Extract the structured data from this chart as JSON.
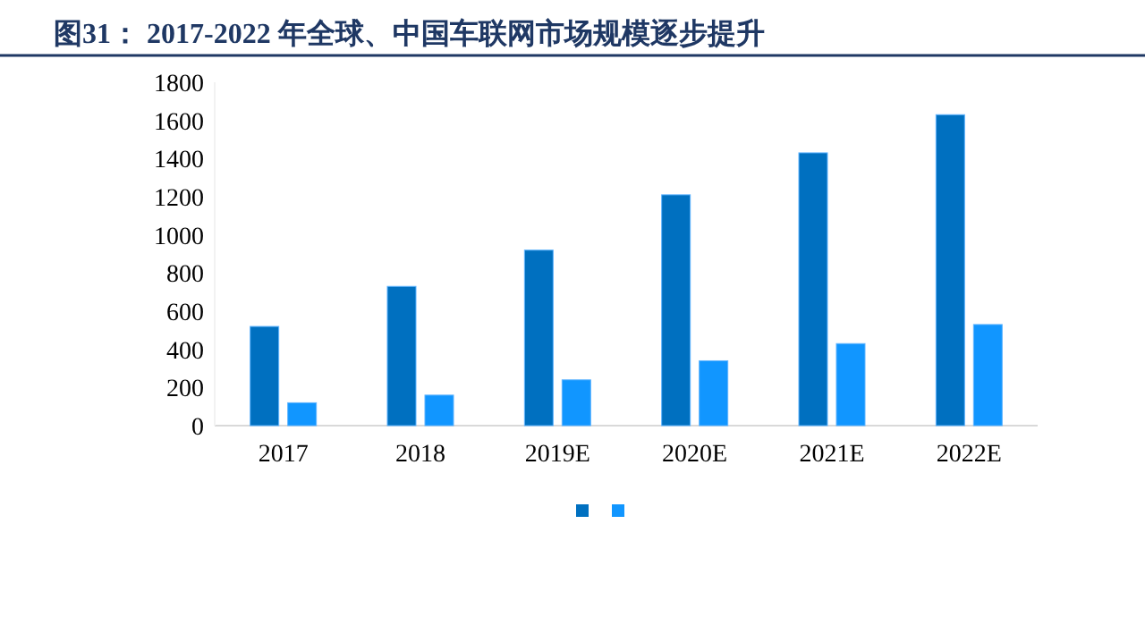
{
  "chart_data": {
    "type": "bar",
    "title": "图31：  2017-2022 年全球、中国车联网市场规模逐步提升",
    "categories": [
      "2017",
      "2018",
      "2019E",
      "2020E",
      "2021E",
      "2022E"
    ],
    "series": [
      {
        "color": "#0070c0",
        "values": [
          520,
          730,
          920,
          1210,
          1430,
          1630
        ]
      },
      {
        "color": "#1196ff",
        "values": [
          120,
          160,
          240,
          340,
          430,
          530
        ]
      }
    ],
    "ylim": [
      0,
      1800
    ],
    "yticks": [
      0,
      200,
      400,
      600,
      800,
      1000,
      1200,
      1400,
      1600,
      1800
    ],
    "grid": false
  }
}
